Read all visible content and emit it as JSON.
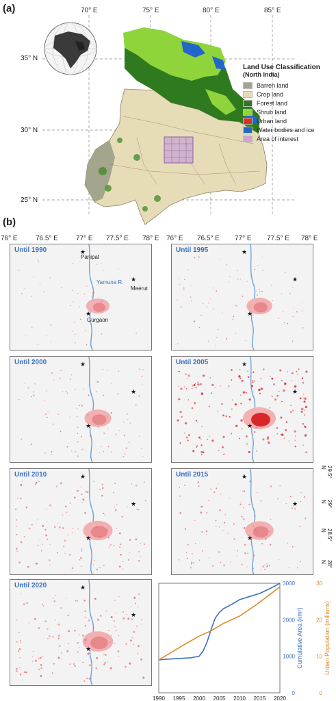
{
  "panel_a": {
    "label": "(a)",
    "lon_labels": [
      "70° E",
      "75° E",
      "80° E",
      "85° E"
    ],
    "lat_labels": [
      "35° N",
      "30° N",
      "25° N"
    ],
    "legend": {
      "title": "Land Use Classification",
      "subtitle": "(North India)",
      "items": [
        {
          "label": "Barren land",
          "color": "#a3a58c"
        },
        {
          "label": "Crop land",
          "color": "#e7dcb8"
        },
        {
          "label": "Forest land",
          "color": "#2f7a1e"
        },
        {
          "label": "Shrub land",
          "color": "#8fd43a"
        },
        {
          "label": "Urban land",
          "color": "#d9302b"
        },
        {
          "label": "Water bodies and ice",
          "color": "#2166c8"
        },
        {
          "label": "Area of interest",
          "color": "#c9a6d6"
        }
      ]
    }
  },
  "panel_b": {
    "label": "(b)",
    "lon_ticks_left": [
      "76° E",
      "76.5° E",
      "77° E",
      "77.5° E",
      "78° E"
    ],
    "lon_ticks_right": [
      "76° E",
      "76.5° E",
      "77° E",
      "77.5° E",
      "78° E"
    ],
    "lat_ticks": [
      "29.5° N",
      "29° N",
      "28.5° N",
      "28° N"
    ],
    "cities": {
      "panipat": "Panipat",
      "meerut": "Meerut",
      "gurgaon": "Gurgaon",
      "river": "Yamuna R."
    },
    "maps": [
      {
        "title": "Until 1990",
        "density": 0.15
      },
      {
        "title": "Until 1995",
        "density": 0.35
      },
      {
        "title": "Until 2000",
        "density": 0.45
      },
      {
        "title": "Until 2005",
        "density": 1.0
      },
      {
        "title": "Until 2010",
        "density": 0.7
      },
      {
        "title": "Until 2015",
        "density": 0.6
      },
      {
        "title": "Until 2020",
        "density": 0.8
      }
    ]
  },
  "chart_data": {
    "type": "line",
    "xlabel": "",
    "x_ticks": [
      1990,
      1995,
      2000,
      2005,
      2010,
      2015,
      2020
    ],
    "xlim": [
      1990,
      2020
    ],
    "series": [
      {
        "name": "Cumulative Area (km²)",
        "axis": "left",
        "color": "#3a6fc4",
        "ylim": [
          0,
          3000
        ],
        "y_ticks": [
          0,
          1000,
          2000,
          3000
        ],
        "x": [
          1990,
          1992,
          1995,
          1998,
          2000,
          2001,
          2002,
          2003,
          2004,
          2005,
          2006,
          2008,
          2010,
          2012,
          2015,
          2018,
          2020
        ],
        "y": [
          900,
          920,
          940,
          960,
          1000,
          1150,
          1400,
          1750,
          2050,
          2200,
          2300,
          2420,
          2550,
          2620,
          2720,
          2880,
          3000
        ]
      },
      {
        "name": "Urban Population (millions)",
        "axis": "right",
        "color": "#e08a2a",
        "ylim": [
          0,
          30
        ],
        "y_ticks": [
          0,
          10,
          20,
          30
        ],
        "x": [
          1990,
          1993,
          1996,
          2000,
          2003,
          2006,
          2010,
          2014,
          2017,
          2020
        ],
        "y": [
          9,
          11,
          13,
          15.5,
          17,
          19,
          21,
          24,
          26.5,
          29
        ]
      }
    ]
  }
}
